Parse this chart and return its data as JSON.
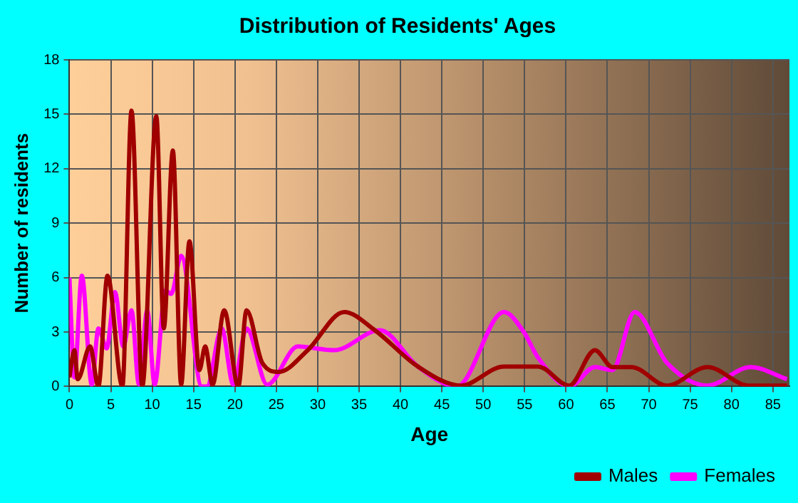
{
  "chart_data": {
    "type": "line",
    "title": "Distribution of Residents' Ages",
    "xlabel": "Age",
    "ylabel": "Number of residents",
    "xlim": [
      0,
      87
    ],
    "xticks": [
      0,
      5,
      10,
      15,
      20,
      25,
      30,
      35,
      40,
      45,
      50,
      55,
      60,
      65,
      70,
      75,
      80,
      85
    ],
    "ylim": [
      0,
      18
    ],
    "yticks": [
      0,
      3,
      6,
      9,
      12,
      15,
      18
    ],
    "grid": true,
    "legend": "bottom right",
    "marker": "none",
    "series": [
      {
        "name": "Males",
        "color": "#a00000",
        "x": [
          0,
          0.6,
          1.0,
          2.5,
          3.5,
          4.6,
          6.4,
          7.5,
          8.8,
          10.5,
          11.4,
          12.5,
          13.5,
          14.5,
          15.7,
          16.4,
          17.3,
          18.7,
          20.4,
          21.4,
          23.3,
          25.3,
          28.8,
          33.2,
          36.9,
          42.1,
          47.3,
          52.5,
          56.6,
          60.4,
          63.5,
          65.6,
          67.9,
          72.2,
          77.1,
          82.1,
          86.7
        ],
        "values": [
          0.5,
          2.0,
          0.4,
          2.2,
          0,
          6.1,
          0,
          15.2,
          0,
          14.9,
          3.2,
          13,
          0.1,
          8,
          0.9,
          2.2,
          0.1,
          4.2,
          0,
          4.2,
          1.3,
          0.8,
          2.0,
          4.1,
          3.1,
          1.1,
          0.05,
          1.1,
          1.1,
          0.05,
          2.0,
          1.07,
          1.07,
          0.05,
          1.07,
          0.05,
          0.05
        ]
      },
      {
        "name": "Females",
        "color": "#ff00ff",
        "x": [
          0,
          0.6,
          1.5,
          2.7,
          3.5,
          4.5,
          5.5,
          6.5,
          7.5,
          8.4,
          9.4,
          10.3,
          11.6,
          12.3,
          13.5,
          16.0,
          16.6,
          18.4,
          19.8,
          21.4,
          23.9,
          27.6,
          32.0,
          37.5,
          42.1,
          46.8,
          52.5,
          54.9,
          56.6,
          60.4,
          63.5,
          65.6,
          68.3,
          72.2,
          77.1,
          82.3,
          86.7
        ],
        "values": [
          6.0,
          0.5,
          6.1,
          0.1,
          3.2,
          2.1,
          5.2,
          2.2,
          4.2,
          0.1,
          4.2,
          0.1,
          5.3,
          5.1,
          7.2,
          0,
          0,
          3.2,
          0.1,
          3.2,
          0.1,
          2.2,
          2.0,
          3.1,
          1.1,
          0,
          4.1,
          3.0,
          1.6,
          0,
          1.07,
          0.9,
          4.1,
          1.3,
          0.05,
          1.07,
          0.4
        ]
      }
    ]
  }
}
